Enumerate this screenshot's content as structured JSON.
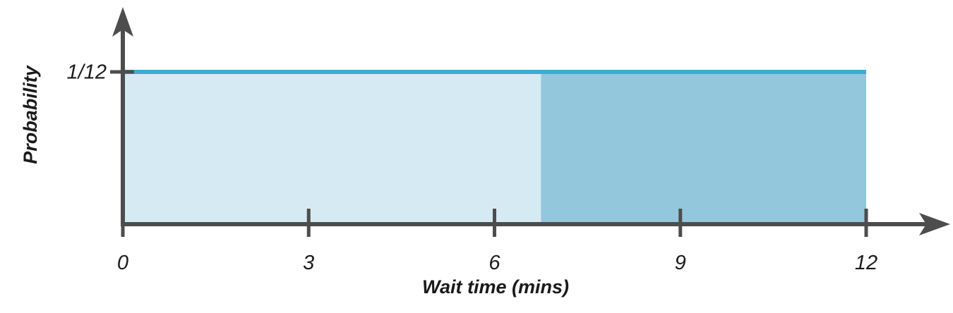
{
  "chart_data": {
    "type": "area",
    "title": "",
    "xlabel": "Wait time (mins)",
    "ylabel": "Probability",
    "x_ticks": [
      "0",
      "3",
      "6",
      "9",
      "12"
    ],
    "x_tick_values": [
      0,
      3,
      6,
      9,
      12
    ],
    "y_tick_label": "1/12",
    "y_tick_value": 0.0833,
    "xlim": [
      0,
      12
    ],
    "density": {
      "x_start": 0,
      "x_end": 12,
      "value": 0.0833
    },
    "shaded_regions": [
      {
        "x_start": 0,
        "x_end": 6.75,
        "color": "#d6eaf3"
      },
      {
        "x_start": 6.75,
        "x_end": 12,
        "color": "#92c7dc"
      }
    ],
    "colors": {
      "density_line": "#3aadd0",
      "axis": "#4d4d4d"
    },
    "grid": false
  }
}
